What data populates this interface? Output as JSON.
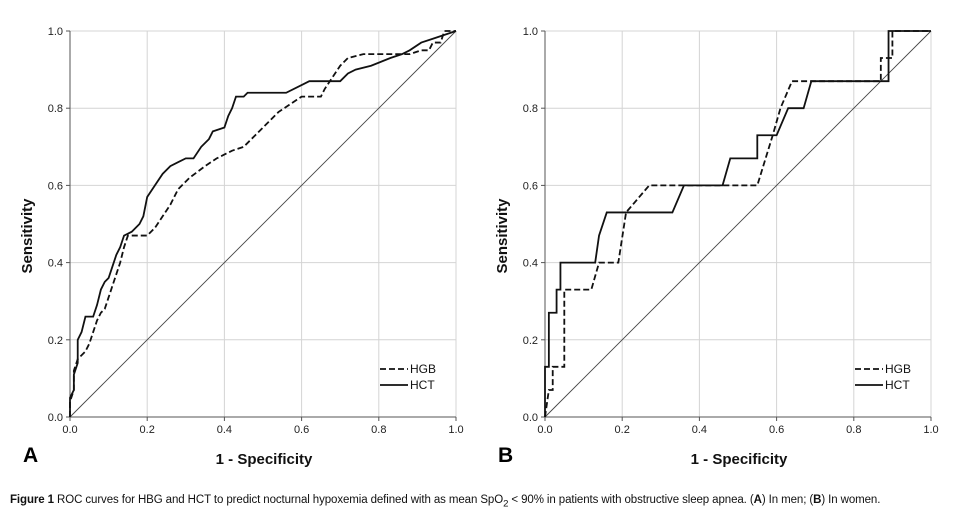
{
  "chart_data": [
    {
      "type": "line",
      "panel_label": "A",
      "xlabel": "1 - Specificity",
      "ylabel": "Sensitivity",
      "xlim": [
        0,
        1
      ],
      "ylim": [
        0,
        1
      ],
      "x_ticks": [
        "0.0",
        "0.2",
        "0.4",
        "0.6",
        "0.8",
        "1.0"
      ],
      "y_ticks": [
        "0.0",
        "0.2",
        "0.4",
        "0.6",
        "0.8",
        "1.0"
      ],
      "grid": true,
      "legend_position": "bottom-right",
      "reference_line": [
        [
          0,
          0
        ],
        [
          1,
          1
        ]
      ],
      "series": [
        {
          "name": "HGB",
          "style": "dashed",
          "points": [
            [
              0,
              0
            ],
            [
              0,
              0.04
            ],
            [
              0.01,
              0.07
            ],
            [
              0.01,
              0.12
            ],
            [
              0.02,
              0.15
            ],
            [
              0.04,
              0.17
            ],
            [
              0.05,
              0.19
            ],
            [
              0.06,
              0.22
            ],
            [
              0.07,
              0.25
            ],
            [
              0.08,
              0.27
            ],
            [
              0.09,
              0.28
            ],
            [
              0.1,
              0.31
            ],
            [
              0.11,
              0.34
            ],
            [
              0.12,
              0.37
            ],
            [
              0.13,
              0.4
            ],
            [
              0.14,
              0.44
            ],
            [
              0.15,
              0.47
            ],
            [
              0.2,
              0.47
            ],
            [
              0.22,
              0.49
            ],
            [
              0.24,
              0.52
            ],
            [
              0.26,
              0.55
            ],
            [
              0.28,
              0.59
            ],
            [
              0.31,
              0.62
            ],
            [
              0.35,
              0.65
            ],
            [
              0.38,
              0.67
            ],
            [
              0.42,
              0.69
            ],
            [
              0.45,
              0.7
            ],
            [
              0.48,
              0.73
            ],
            [
              0.51,
              0.76
            ],
            [
              0.54,
              0.79
            ],
            [
              0.57,
              0.81
            ],
            [
              0.6,
              0.83
            ],
            [
              0.65,
              0.83
            ],
            [
              0.66,
              0.85
            ],
            [
              0.68,
              0.88
            ],
            [
              0.7,
              0.91
            ],
            [
              0.72,
              0.93
            ],
            [
              0.76,
              0.94
            ],
            [
              0.8,
              0.94
            ],
            [
              0.85,
              0.94
            ],
            [
              0.88,
              0.94
            ],
            [
              0.91,
              0.95
            ],
            [
              0.93,
              0.95
            ],
            [
              0.94,
              0.97
            ],
            [
              0.96,
              0.97
            ],
            [
              0.97,
              1.0
            ],
            [
              1,
              1
            ]
          ]
        },
        {
          "name": "HCT",
          "style": "solid",
          "points": [
            [
              0,
              0
            ],
            [
              0,
              0.05
            ],
            [
              0.01,
              0.07
            ],
            [
              0.01,
              0.11
            ],
            [
              0.02,
              0.14
            ],
            [
              0.02,
              0.2
            ],
            [
              0.03,
              0.22
            ],
            [
              0.04,
              0.26
            ],
            [
              0.06,
              0.26
            ],
            [
              0.07,
              0.29
            ],
            [
              0.08,
              0.33
            ],
            [
              0.09,
              0.35
            ],
            [
              0.1,
              0.36
            ],
            [
              0.11,
              0.39
            ],
            [
              0.12,
              0.42
            ],
            [
              0.13,
              0.44
            ],
            [
              0.14,
              0.47
            ],
            [
              0.16,
              0.48
            ],
            [
              0.18,
              0.5
            ],
            [
              0.19,
              0.52
            ],
            [
              0.2,
              0.57
            ],
            [
              0.22,
              0.6
            ],
            [
              0.24,
              0.63
            ],
            [
              0.26,
              0.65
            ],
            [
              0.28,
              0.66
            ],
            [
              0.3,
              0.67
            ],
            [
              0.32,
              0.67
            ],
            [
              0.34,
              0.7
            ],
            [
              0.36,
              0.72
            ],
            [
              0.37,
              0.74
            ],
            [
              0.4,
              0.75
            ],
            [
              0.41,
              0.78
            ],
            [
              0.42,
              0.8
            ],
            [
              0.43,
              0.83
            ],
            [
              0.45,
              0.83
            ],
            [
              0.46,
              0.84
            ],
            [
              0.56,
              0.84
            ],
            [
              0.6,
              0.86
            ],
            [
              0.62,
              0.87
            ],
            [
              0.7,
              0.87
            ],
            [
              0.72,
              0.89
            ],
            [
              0.74,
              0.9
            ],
            [
              0.78,
              0.91
            ],
            [
              0.83,
              0.93
            ],
            [
              0.86,
              0.94
            ],
            [
              0.88,
              0.95
            ],
            [
              0.91,
              0.97
            ],
            [
              0.94,
              0.98
            ],
            [
              0.97,
              0.99
            ],
            [
              1,
              1
            ]
          ]
        }
      ]
    },
    {
      "type": "line",
      "panel_label": "B",
      "xlabel": "1 - Specificity",
      "ylabel": "Sensitivity",
      "xlim": [
        0,
        1
      ],
      "ylim": [
        0,
        1
      ],
      "x_ticks": [
        "0.0",
        "0.2",
        "0.4",
        "0.6",
        "0.8",
        "1.0"
      ],
      "y_ticks": [
        "0.0",
        "0.2",
        "0.4",
        "0.6",
        "0.8",
        "1.0"
      ],
      "grid": true,
      "legend_position": "bottom-right",
      "reference_line": [
        [
          0,
          0
        ],
        [
          1,
          1
        ]
      ],
      "series": [
        {
          "name": "HGB",
          "style": "dashed",
          "points": [
            [
              0,
              0
            ],
            [
              0.01,
              0.07
            ],
            [
              0.02,
              0.07
            ],
            [
              0.02,
              0.13
            ],
            [
              0.05,
              0.13
            ],
            [
              0.05,
              0.33
            ],
            [
              0.12,
              0.33
            ],
            [
              0.14,
              0.4
            ],
            [
              0.19,
              0.4
            ],
            [
              0.21,
              0.53
            ],
            [
              0.27,
              0.6
            ],
            [
              0.55,
              0.6
            ],
            [
              0.59,
              0.73
            ],
            [
              0.61,
              0.8
            ],
            [
              0.64,
              0.87
            ],
            [
              0.87,
              0.87
            ],
            [
              0.87,
              0.93
            ],
            [
              0.9,
              0.93
            ],
            [
              0.9,
              1.0
            ],
            [
              1,
              1
            ]
          ]
        },
        {
          "name": "HCT",
          "style": "solid",
          "points": [
            [
              0,
              0
            ],
            [
              0,
              0.13
            ],
            [
              0.01,
              0.13
            ],
            [
              0.01,
              0.27
            ],
            [
              0.03,
              0.27
            ],
            [
              0.03,
              0.33
            ],
            [
              0.04,
              0.33
            ],
            [
              0.04,
              0.4
            ],
            [
              0.13,
              0.4
            ],
            [
              0.14,
              0.47
            ],
            [
              0.16,
              0.53
            ],
            [
              0.33,
              0.53
            ],
            [
              0.36,
              0.6
            ],
            [
              0.46,
              0.6
            ],
            [
              0.48,
              0.67
            ],
            [
              0.55,
              0.67
            ],
            [
              0.55,
              0.73
            ],
            [
              0.6,
              0.73
            ],
            [
              0.63,
              0.8
            ],
            [
              0.67,
              0.8
            ],
            [
              0.69,
              0.87
            ],
            [
              0.88,
              0.87
            ],
            [
              0.89,
              0.87
            ],
            [
              0.89,
              1.0
            ],
            [
              1,
              1
            ]
          ]
        }
      ]
    }
  ],
  "caption": {
    "lead": "Figure 1",
    "text_before_subscript": " ROC curves for HBG and HCT to predict nocturnal hypoxemia defined with as mean SpO",
    "subscript": "2",
    "text_after_subscript": " < 90% in patients with obstructive sleep apnea. (",
    "label_a": "A",
    "text_men": ") In men; (",
    "label_b": "B",
    "text_women": ") In women."
  }
}
